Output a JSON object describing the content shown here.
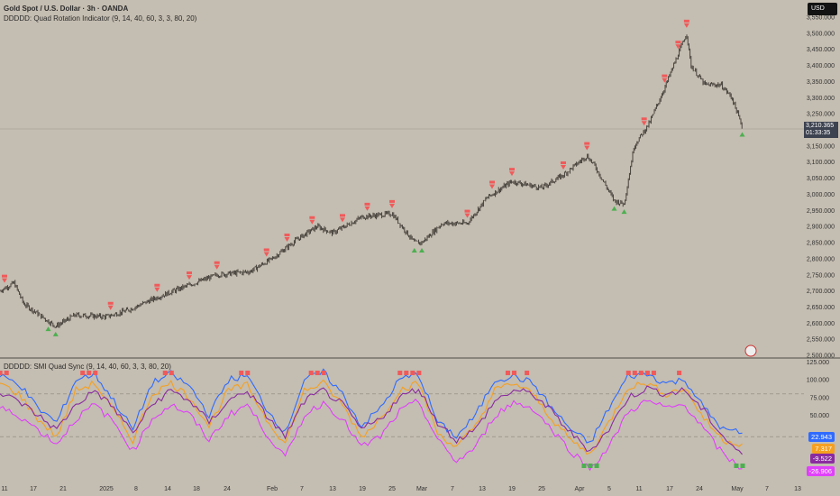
{
  "header": {
    "symbol_title": "Gold Spot / U.S. Dollar · 3h · OANDA",
    "indicator_1": "DDDDD: Quad Rotation Indicator (9, 14, 40, 60, 3, 3, 80, 20)",
    "indicator_2": "DDDDD: SMI Quad Sync (9, 14, 40, 60, 3, 3, 80, 20)",
    "currency_button": "USD"
  },
  "last_price": {
    "value": "3,210.365",
    "countdown": "01:33:35"
  },
  "colors": {
    "background": "#c4bdb1",
    "price": "#3a3530",
    "bear_signal": "#f05a5a",
    "bull_signal": "#4caf50",
    "blue": "#2f6bff",
    "orange": "#f5a020",
    "purple": "#8a2ca0",
    "magenta": "#e040fb"
  },
  "chart_data": [
    {
      "type": "line",
      "title": "Gold Spot / U.S. Dollar · 3h · OANDA",
      "ylim": [
        2500,
        3550
      ],
      "y_ticks": [
        "3,550.000",
        "3,500.000",
        "3,450.000",
        "3,400.000",
        "3,350.000",
        "3,300.000",
        "3,250.000",
        "3,150.000",
        "3,100.000",
        "3,050.000",
        "3,000.000",
        "2,950.000",
        "2,900.000",
        "2,850.000",
        "2,800.000",
        "2,750.000",
        "2,700.000",
        "2,650.000",
        "2,600.000",
        "2,550.000",
        "2,500.000"
      ],
      "price_path": [
        [
          "2024-12-10",
          2700
        ],
        [
          "2024-12-13",
          2725
        ],
        [
          "2024-12-15",
          2660
        ],
        [
          "2024-12-20",
          2590
        ],
        [
          "2024-12-24",
          2625
        ],
        [
          "2025-01-01",
          2620
        ],
        [
          "2025-01-06",
          2640
        ],
        [
          "2025-01-12",
          2680
        ],
        [
          "2025-01-16",
          2710
        ],
        [
          "2025-01-22",
          2750
        ],
        [
          "2025-01-28",
          2760
        ],
        [
          "2025-02-01",
          2800
        ],
        [
          "2025-02-06",
          2860
        ],
        [
          "2025-02-10",
          2900
        ],
        [
          "2025-02-13",
          2880
        ],
        [
          "2025-02-19",
          2930
        ],
        [
          "2025-02-25",
          2940
        ],
        [
          "2025-02-28",
          2850
        ],
        [
          "2025-03-01",
          2850
        ],
        [
          "2025-03-05",
          2910
        ],
        [
          "2025-03-10",
          2910
        ],
        [
          "2025-03-14",
          2990
        ],
        [
          "2025-03-19",
          3040
        ],
        [
          "2025-03-25",
          3020
        ],
        [
          "2025-03-29",
          3060
        ],
        [
          "2025-04-02",
          3120
        ],
        [
          "2025-04-03",
          3090
        ],
        [
          "2025-04-06",
          2980
        ],
        [
          "2025-04-08",
          2970
        ],
        [
          "2025-04-10",
          3150
        ],
        [
          "2025-04-13",
          3220
        ],
        [
          "2025-04-16",
          3330
        ],
        [
          "2025-04-21",
          3500
        ],
        [
          "2025-04-22",
          3400
        ],
        [
          "2025-04-25",
          3340
        ],
        [
          "2025-04-28",
          3340
        ],
        [
          "2025-04-30",
          3300
        ],
        [
          "2025-05-02",
          3210
        ]
      ],
      "bear_signals": [
        "2024-12-11",
        "2025-01-02",
        "2025-01-12",
        "2025-01-17",
        "2025-01-22",
        "2025-01-31",
        "2025-02-04",
        "2025-02-09",
        "2025-02-15",
        "2025-02-20",
        "2025-02-25",
        "2025-03-10",
        "2025-03-15",
        "2025-03-19",
        "2025-03-29",
        "2025-04-02",
        "2025-04-12",
        "2025-04-16",
        "2025-04-19",
        "2025-04-21"
      ],
      "bull_signals": [
        "2024-12-19",
        "2024-12-20",
        "2025-02-28",
        "2025-03-01",
        "2025-04-06",
        "2025-04-08",
        "2025-05-02"
      ]
    },
    {
      "type": "line",
      "title": "DDDDD: SMI Quad Sync (9, 14, 40, 60, 3, 3, 80, 20)",
      "ylim": [
        -35,
        130
      ],
      "y_ticks": [
        "125.000",
        "100.000",
        "75.000",
        "50.000"
      ],
      "levels": [
        80,
        20
      ],
      "x_range": [
        "2024-12-10",
        "2025-05-02"
      ],
      "series": [
        {
          "color": "#2f6bff",
          "last": "22.943",
          "values": [
            105,
            95,
            60,
            40,
            100,
            108,
            70,
            30,
            95,
            108,
            90,
            50,
            100,
            105,
            60,
            25,
            100,
            110,
            80,
            35,
            60,
            100,
            108,
            40,
            20,
            50,
            100,
            105,
            95,
            60,
            30,
            10,
            60,
            105,
            108,
            95,
            100,
            60,
            30,
            25
          ]
        },
        {
          "color": "#f5a020",
          "last": "7.317",
          "values": [
            95,
            80,
            45,
            20,
            85,
            95,
            55,
            15,
            80,
            95,
            75,
            35,
            85,
            92,
            45,
            10,
            85,
            95,
            65,
            20,
            45,
            85,
            95,
            25,
            5,
            35,
            85,
            95,
            80,
            45,
            15,
            -5,
            40,
            90,
            95,
            80,
            88,
            45,
            15,
            10
          ]
        },
        {
          "color": "#8a2ca0",
          "last": "-9.522",
          "values": [
            80,
            70,
            50,
            30,
            65,
            85,
            60,
            25,
            65,
            85,
            70,
            40,
            70,
            85,
            50,
            20,
            70,
            85,
            65,
            30,
            45,
            75,
            88,
            40,
            15,
            30,
            70,
            85,
            80,
            55,
            25,
            0,
            30,
            75,
            88,
            80,
            85,
            55,
            20,
            -5
          ]
        },
        {
          "color": "#e040fb",
          "last": "-26.906",
          "values": [
            60,
            50,
            30,
            10,
            45,
            65,
            40,
            0,
            45,
            65,
            50,
            15,
            50,
            65,
            25,
            -10,
            50,
            68,
            45,
            5,
            20,
            55,
            70,
            15,
            -15,
            5,
            50,
            68,
            60,
            30,
            0,
            -25,
            5,
            55,
            70,
            60,
            65,
            30,
            -5,
            -25
          ]
        }
      ]
    }
  ],
  "x_axis": {
    "ticks": [
      [
        "11",
        "2024-12-11"
      ],
      [
        "17",
        "2024-12-17"
      ],
      [
        "21",
        "2024-12-21"
      ],
      [
        "2025",
        "2025-01-01"
      ],
      [
        "8",
        "2025-01-08"
      ],
      [
        "14",
        "2025-01-14"
      ],
      [
        "18",
        "2025-01-18"
      ],
      [
        "24",
        "2025-01-24"
      ],
      [
        "Feb",
        "2025-02-01"
      ],
      [
        "7",
        "2025-02-07"
      ],
      [
        "13",
        "2025-02-13"
      ],
      [
        "19",
        "2025-02-19"
      ],
      [
        "25",
        "2025-02-25"
      ],
      [
        "Mar",
        "2025-03-01"
      ],
      [
        "7",
        "2025-03-07"
      ],
      [
        "13",
        "2025-03-13"
      ],
      [
        "19",
        "2025-03-19"
      ],
      [
        "25",
        "2025-03-25"
      ],
      [
        "Apr",
        "2025-04-01"
      ],
      [
        "5",
        "2025-04-05"
      ],
      [
        "11",
        "2025-04-11"
      ],
      [
        "17",
        "2025-04-17"
      ],
      [
        "24",
        "2025-04-24"
      ],
      [
        "May",
        "2025-05-01"
      ],
      [
        "7",
        "2025-05-07"
      ],
      [
        "13",
        "2025-05-13"
      ]
    ]
  }
}
